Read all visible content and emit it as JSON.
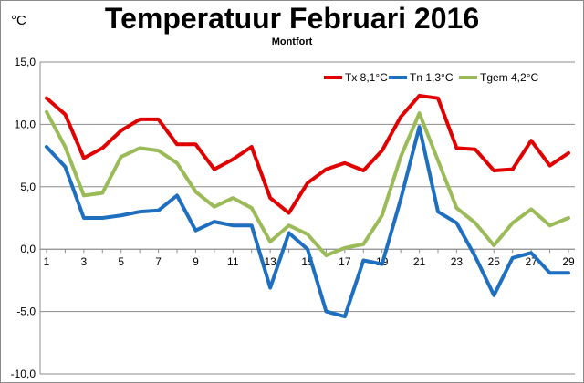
{
  "chart_data": {
    "type": "line",
    "title": "Temperatuur Februari 2016",
    "subtitle": "Montfort",
    "unit_label": "°C",
    "xlabel": "",
    "ylabel": "",
    "x": [
      1,
      2,
      3,
      4,
      5,
      6,
      7,
      8,
      9,
      10,
      11,
      12,
      13,
      14,
      15,
      16,
      17,
      18,
      19,
      20,
      21,
      22,
      23,
      24,
      25,
      26,
      27,
      28,
      29
    ],
    "x_tick_labels": [
      "1",
      "3",
      "5",
      "7",
      "9",
      "11",
      "13",
      "15",
      "17",
      "19",
      "21",
      "23",
      "25",
      "27",
      "29"
    ],
    "x_tick_values": [
      1,
      3,
      5,
      7,
      9,
      11,
      13,
      15,
      17,
      19,
      21,
      23,
      25,
      27,
      29
    ],
    "y_tick_labels": [
      "15,0",
      "10,0",
      "5,0",
      "0,0",
      "-5,0",
      "-10,0"
    ],
    "y_tick_values": [
      15,
      10,
      5,
      0,
      -5,
      -10
    ],
    "ylim": [
      -10,
      15
    ],
    "grid": "horizontal",
    "legend_position": "top-right",
    "series": [
      {
        "name": "Tx 8,1°C",
        "color": "#e00000",
        "values": [
          12.1,
          10.8,
          7.3,
          8.1,
          9.5,
          10.4,
          10.4,
          8.4,
          8.4,
          6.4,
          7.2,
          8.2,
          4.1,
          2.9,
          5.3,
          6.4,
          6.9,
          6.3,
          7.9,
          10.6,
          12.3,
          12.1,
          8.1,
          8.0,
          6.3,
          6.4,
          8.7,
          6.7,
          7.7
        ]
      },
      {
        "name": "Tn 1,3°C",
        "color": "#1f6fc0",
        "values": [
          8.2,
          6.6,
          2.5,
          2.5,
          2.7,
          3.0,
          3.1,
          4.3,
          1.5,
          2.2,
          1.9,
          1.9,
          -3.1,
          1.3,
          0.0,
          -5.0,
          -5.4,
          -0.9,
          -1.2,
          4.0,
          9.8,
          3.0,
          2.1,
          -0.6,
          -3.7,
          -0.7,
          -0.3,
          -1.9,
          -1.9
        ]
      },
      {
        "name": "Tgem 4,2°C",
        "color": "#9bbb59",
        "values": [
          11.0,
          8.2,
          4.3,
          4.5,
          7.4,
          8.1,
          7.9,
          6.9,
          4.6,
          3.4,
          4.1,
          3.3,
          0.6,
          1.9,
          1.2,
          -0.5,
          0.1,
          0.4,
          2.7,
          7.4,
          10.9,
          7.1,
          3.3,
          2.1,
          0.3,
          2.1,
          3.2,
          1.9,
          2.5
        ]
      }
    ]
  }
}
